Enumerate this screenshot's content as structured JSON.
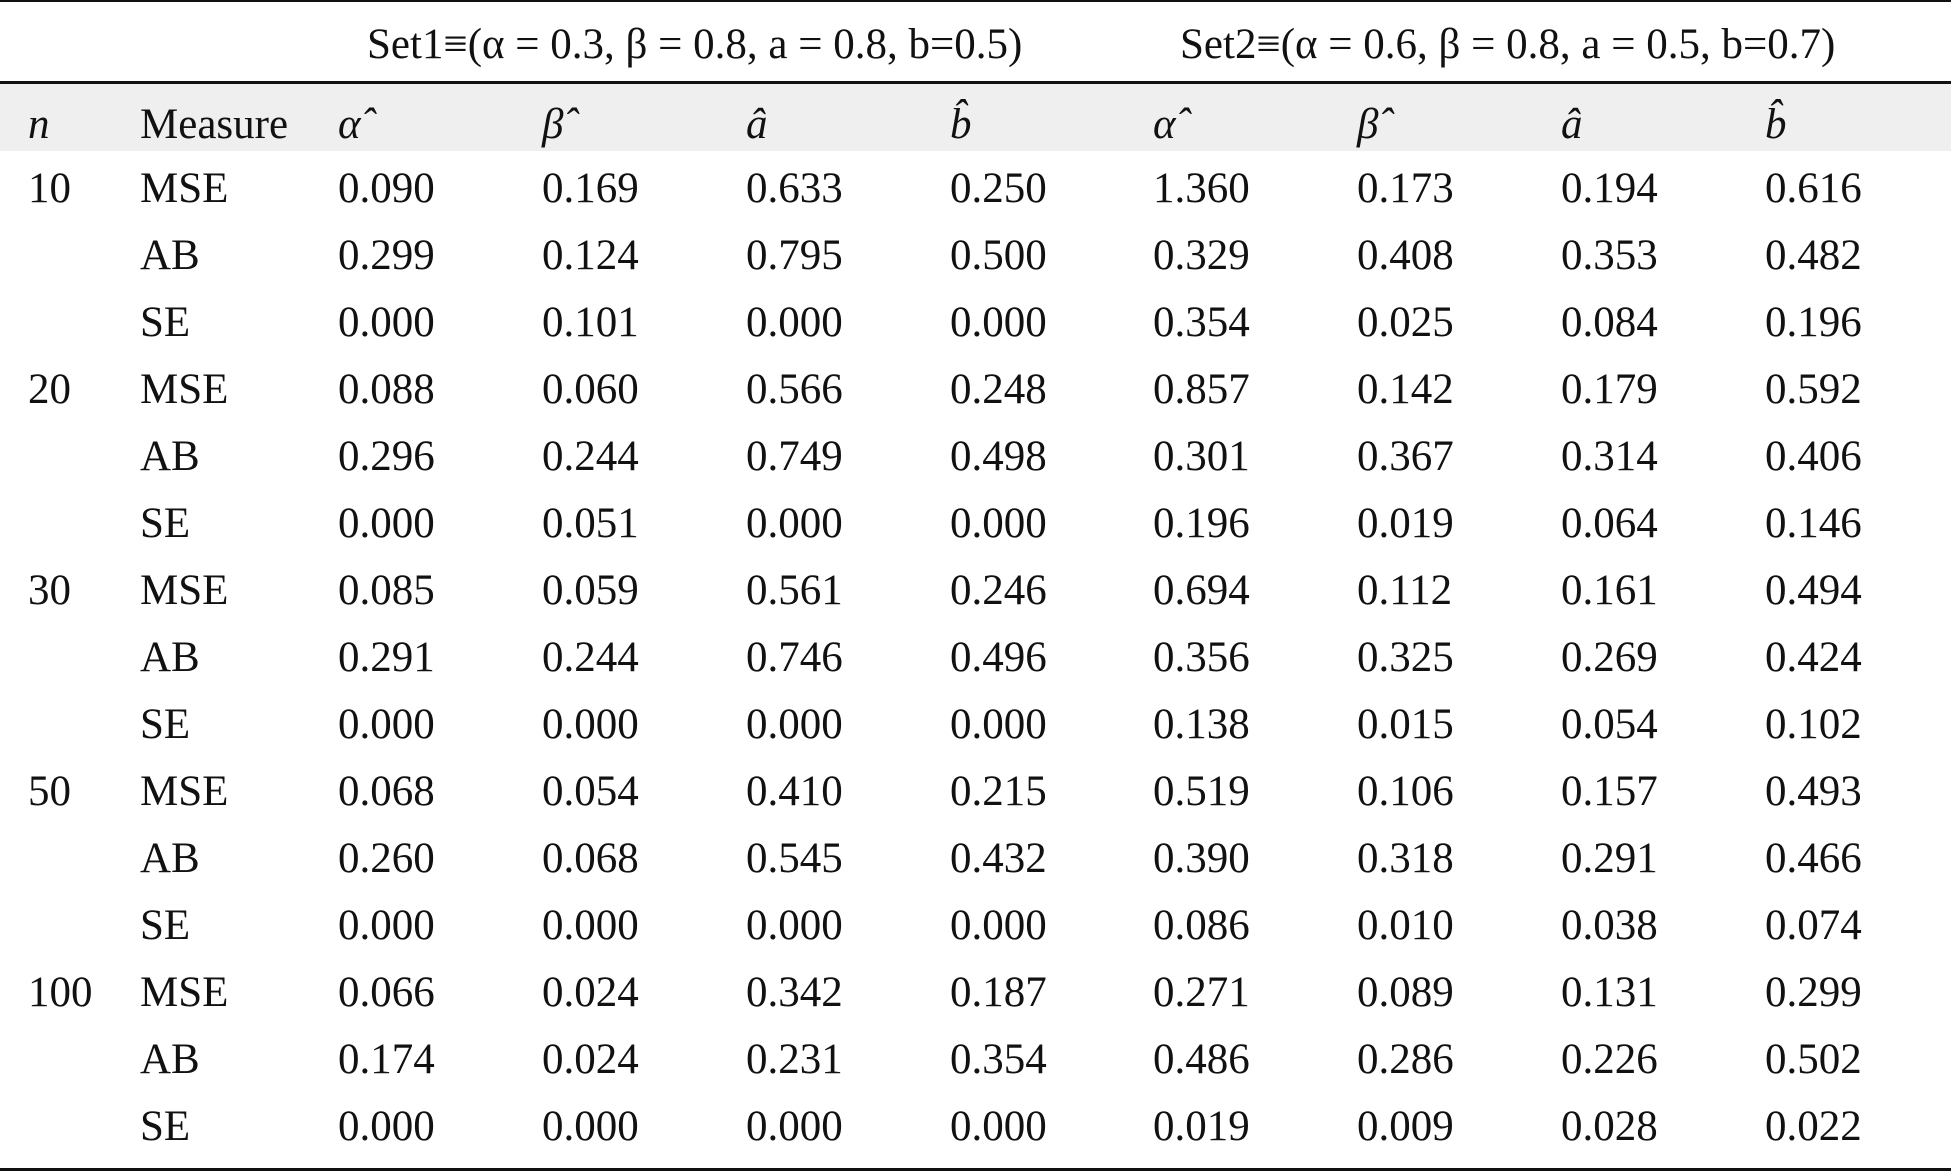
{
  "table": {
    "set1_header": "Set1≡(α = 0.3, β = 0.8, a = 0.8, b=0.5)",
    "set2_header": "Set2≡(α = 0.6, β = 0.8, a = 0.5, b=0.7)",
    "columns": [
      "n",
      "Measure",
      "α̂",
      "β̂",
      "â",
      "b̂",
      "α̂",
      "β̂",
      "â",
      "b̂"
    ],
    "rows": [
      [
        "10",
        "MSE",
        "0.090",
        "0.169",
        "0.633",
        "0.250",
        "1.360",
        "0.173",
        "0.194",
        "0.616"
      ],
      [
        "",
        "AB",
        "0.299",
        "0.124",
        "0.795",
        "0.500",
        "0.329",
        "0.408",
        "0.353",
        "0.482"
      ],
      [
        "",
        "SE",
        "0.000",
        "0.101",
        "0.000",
        "0.000",
        "0.354",
        "0.025",
        "0.084",
        "0.196"
      ],
      [
        "20",
        "MSE",
        "0.088",
        "0.060",
        "0.566",
        "0.248",
        "0.857",
        "0.142",
        "0.179",
        "0.592"
      ],
      [
        "",
        "AB",
        "0.296",
        "0.244",
        "0.749",
        "0.498",
        "0.301",
        "0.367",
        "0.314",
        "0.406"
      ],
      [
        "",
        "SE",
        "0.000",
        "0.051",
        "0.000",
        "0.000",
        "0.196",
        "0.019",
        "0.064",
        "0.146"
      ],
      [
        "30",
        "MSE",
        "0.085",
        "0.059",
        "0.561",
        "0.246",
        "0.694",
        "0.112",
        "0.161",
        "0.494"
      ],
      [
        "",
        "AB",
        "0.291",
        "0.244",
        "0.746",
        "0.496",
        "0.356",
        "0.325",
        "0.269",
        "0.424"
      ],
      [
        "",
        "SE",
        "0.000",
        "0.000",
        "0.000",
        "0.000",
        "0.138",
        "0.015",
        "0.054",
        "0.102"
      ],
      [
        "50",
        "MSE",
        "0.068",
        "0.054",
        "0.410",
        "0.215",
        "0.519",
        "0.106",
        "0.157",
        "0.493"
      ],
      [
        "",
        "AB",
        "0.260",
        "0.068",
        "0.545",
        "0.432",
        "0.390",
        "0.318",
        "0.291",
        "0.466"
      ],
      [
        "",
        "SE",
        "0.000",
        "0.000",
        "0.000",
        "0.000",
        "0.086",
        "0.010",
        "0.038",
        "0.074"
      ],
      [
        "100",
        "MSE",
        "0.066",
        "0.024",
        "0.342",
        "0.187",
        "0.271",
        "0.089",
        "0.131",
        "0.299"
      ],
      [
        "",
        "AB",
        "0.174",
        "0.024",
        "0.231",
        "0.354",
        "0.486",
        "0.286",
        "0.226",
        "0.502"
      ],
      [
        "",
        "SE",
        "0.000",
        "0.000",
        "0.000",
        "0.000",
        "0.019",
        "0.009",
        "0.028",
        "0.022"
      ]
    ]
  }
}
